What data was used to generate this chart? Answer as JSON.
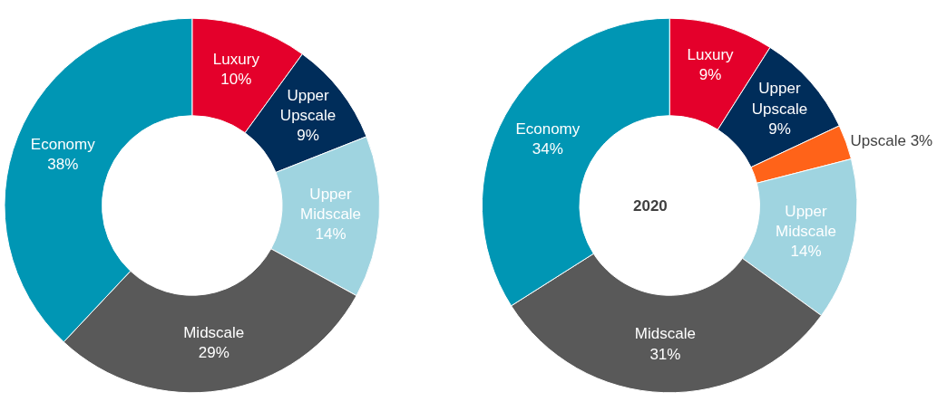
{
  "chart_data": [
    {
      "type": "donut",
      "categories": [
        "Luxury",
        "Upper Upscale",
        "Upper Midscale",
        "Midscale",
        "Economy"
      ],
      "values": [
        10,
        9,
        14,
        29,
        38
      ],
      "colors": [
        "#e4002b",
        "#002d5a",
        "#9fd4e0",
        "#595959",
        "#0096b4"
      ],
      "value_labels": [
        "10%",
        "9%",
        "14%",
        "29%",
        "38%"
      ]
    },
    {
      "type": "donut",
      "categories": [
        "Luxury",
        "Upper Upscale",
        "Upscale",
        "Upper Midscale",
        "Midscale",
        "Economy"
      ],
      "values": [
        9,
        9,
        3,
        14,
        31,
        34
      ],
      "colors": [
        "#e4002b",
        "#002d5a",
        "#ff6319",
        "#9fd4e0",
        "#595959",
        "#0096b4"
      ],
      "value_labels": [
        "9%",
        "9%",
        "3%",
        "14%",
        "31%",
        "34%"
      ],
      "annotations": [
        "2020"
      ]
    }
  ]
}
